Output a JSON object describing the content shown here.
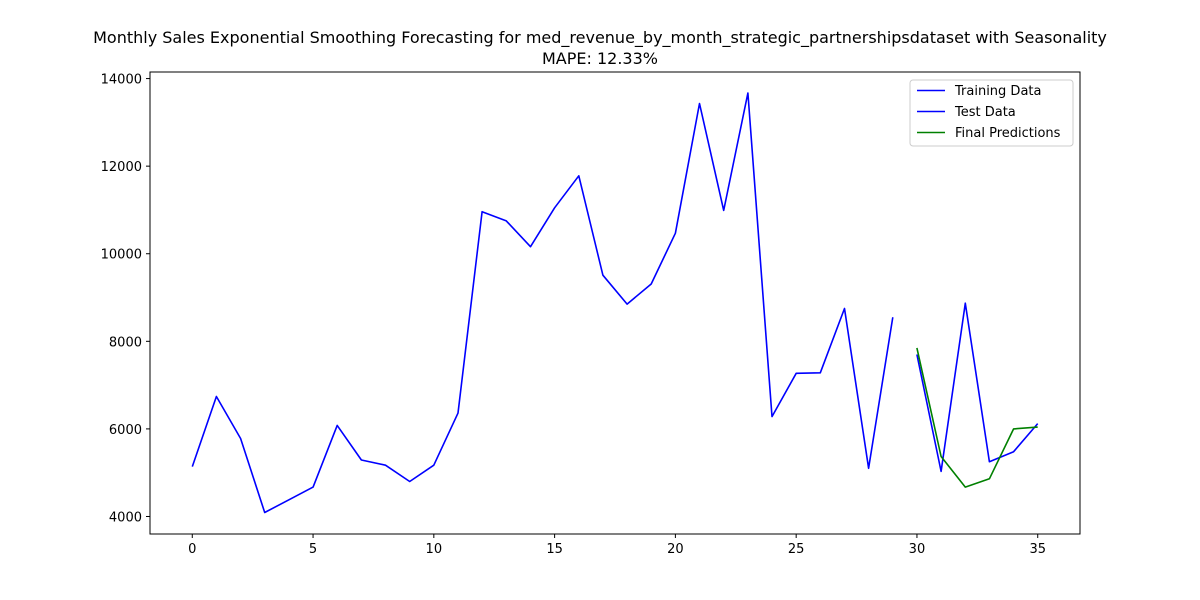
{
  "chart_data": {
    "type": "line",
    "title": "Monthly Sales Exponential Smoothing Forecasting for med_revenue_by_month_strategic_partnershipsdataset with Seasonality",
    "subtitle": "MAPE: 12.33%",
    "xlabel": "",
    "ylabel": "",
    "xlim": [
      -1.75,
      36.75
    ],
    "ylim": [
      3600,
      14150
    ],
    "xticks": [
      0,
      5,
      10,
      15,
      20,
      25,
      30,
      35
    ],
    "yticks": [
      4000,
      6000,
      8000,
      10000,
      12000,
      14000
    ],
    "grid": false,
    "legend_position": "top-right",
    "series": [
      {
        "name": "Training Data",
        "color": "#0000ff",
        "x": [
          0,
          1,
          2,
          3,
          4,
          5,
          6,
          7,
          8,
          9,
          10,
          11,
          12,
          13,
          14,
          15,
          16,
          17,
          18,
          19,
          20,
          21,
          22,
          23,
          24,
          25,
          26,
          27,
          28,
          29
        ],
        "values": [
          5140,
          6740,
          5780,
          4090,
          4380,
          4670,
          6080,
          5290,
          5170,
          4800,
          5170,
          6360,
          10960,
          10750,
          10160,
          11050,
          11780,
          9510,
          8850,
          9310,
          10470,
          13430,
          10990,
          13670,
          6280,
          7270,
          7280,
          8750,
          5100,
          8550
        ]
      },
      {
        "name": "Test Data",
        "color": "#0000ff",
        "x": [
          30,
          31,
          32,
          33,
          34,
          35
        ],
        "values": [
          7700,
          5030,
          8870,
          5250,
          5480,
          6120
        ]
      },
      {
        "name": "Final Predictions",
        "color": "#008000",
        "x": [
          30,
          31,
          32,
          33,
          34,
          35
        ],
        "values": [
          7850,
          5370,
          4670,
          4860,
          6000,
          6040
        ]
      }
    ]
  }
}
